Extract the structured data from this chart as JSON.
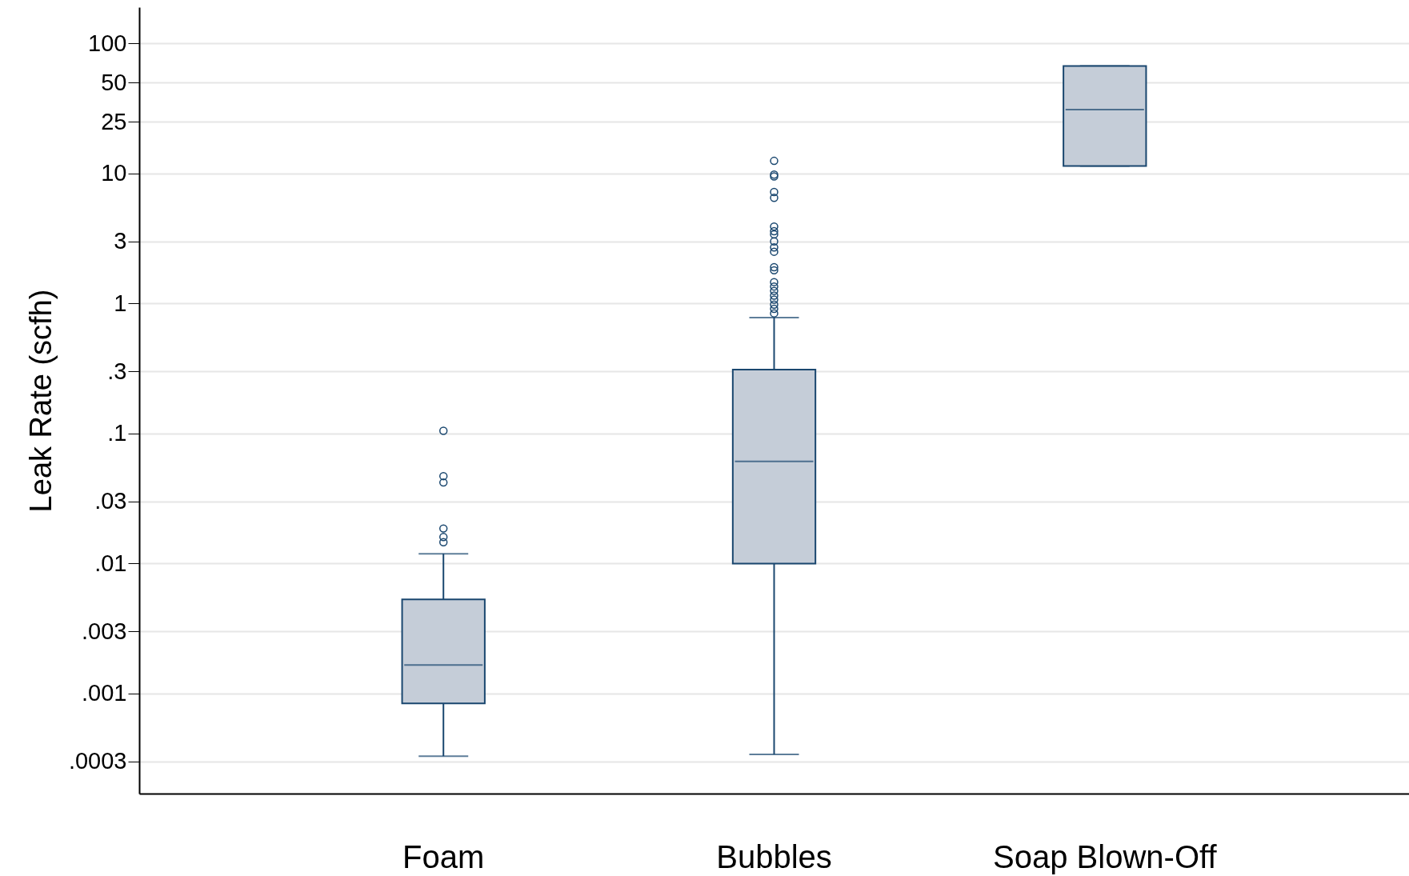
{
  "chart_data": {
    "type": "box",
    "ylabel": "Leak Rate (scfh)",
    "categories": [
      "Foam",
      "Bubbles",
      "Soap Blown-Off"
    ],
    "boxes": [
      {
        "low": 0.00033,
        "q1": 0.00084,
        "median": 0.00166,
        "q3": 0.0053,
        "high": 0.0119,
        "outliers": [
          0.105,
          0.047,
          0.042,
          0.0186,
          0.016,
          0.0146
        ]
      },
      {
        "low": 0.00034,
        "q1": 0.01,
        "median": 0.061,
        "q3": 0.31,
        "high": 0.78,
        "outliers": [
          12.5,
          9.8,
          9.5,
          7.2,
          6.5,
          3.9,
          3.6,
          3.4,
          3.0,
          2.7,
          2.5,
          1.9,
          1.8,
          1.46,
          1.35,
          1.25,
          1.15,
          1.07,
          0.98,
          0.91,
          0.84
        ]
      },
      {
        "low": 11.4,
        "q1": 11.4,
        "median": 31,
        "q3": 67,
        "high": 67
      }
    ],
    "color": "#c5cdd8",
    "log": true,
    "ylim": [
      0.00017,
      190
    ],
    "yticks": [
      100,
      50,
      25,
      10,
      3,
      1,
      {
        "value": 0.3,
        "label": ".3"
      },
      {
        "value": 0.1,
        "label": ".1"
      },
      {
        "value": 0.03,
        "label": ".03"
      },
      {
        "value": 0.01,
        "label": ".01"
      },
      {
        "value": 0.003,
        "label": ".003"
      },
      {
        "value": 0.001,
        "label": ".001"
      },
      {
        "value": 0.0003,
        "label": ".0003"
      }
    ],
    "grid": "y",
    "marker": "circle"
  }
}
